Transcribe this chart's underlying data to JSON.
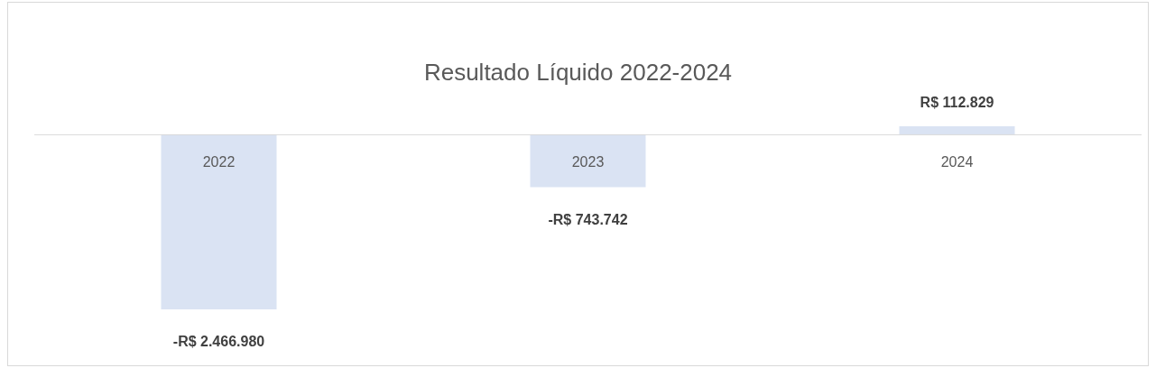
{
  "chart_data": {
    "type": "bar",
    "title": "Resultado Líquido 2022-2024",
    "categories": [
      "2022",
      "2023",
      "2024"
    ],
    "values": [
      -2466980,
      -743742,
      112829
    ],
    "color": "#dae3f3",
    "value_labels": [
      "-R$ 2.466.980",
      "-R$ 743.742",
      "R$ 112.829"
    ]
  }
}
